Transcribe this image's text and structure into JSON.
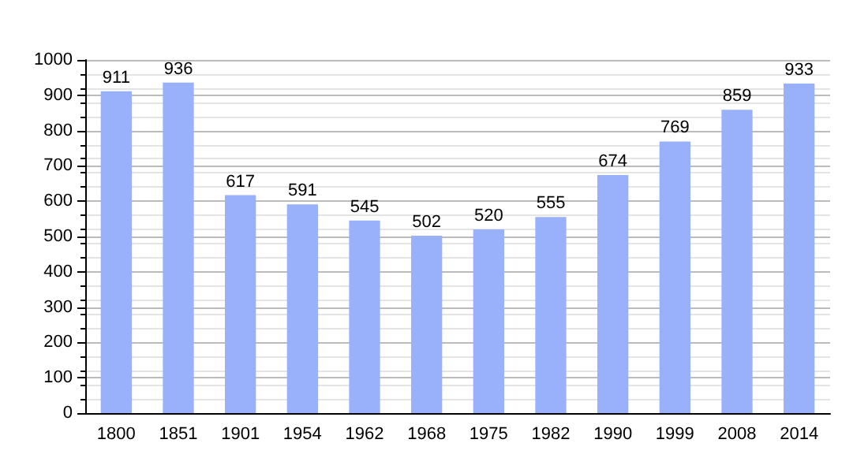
{
  "chart_data": {
    "type": "bar",
    "categories": [
      "1800",
      "1851",
      "1901",
      "1954",
      "1962",
      "1968",
      "1975",
      "1982",
      "1990",
      "1999",
      "2008",
      "2014"
    ],
    "values": [
      911,
      936,
      617,
      591,
      545,
      502,
      520,
      555,
      674,
      769,
      859,
      933
    ],
    "color": "#99b1fb",
    "data_labels": true,
    "ylim": [
      0,
      1000
    ],
    "yticks": [
      0,
      100,
      200,
      300,
      400,
      500,
      600,
      700,
      800,
      900,
      1000
    ],
    "grid": "y"
  }
}
